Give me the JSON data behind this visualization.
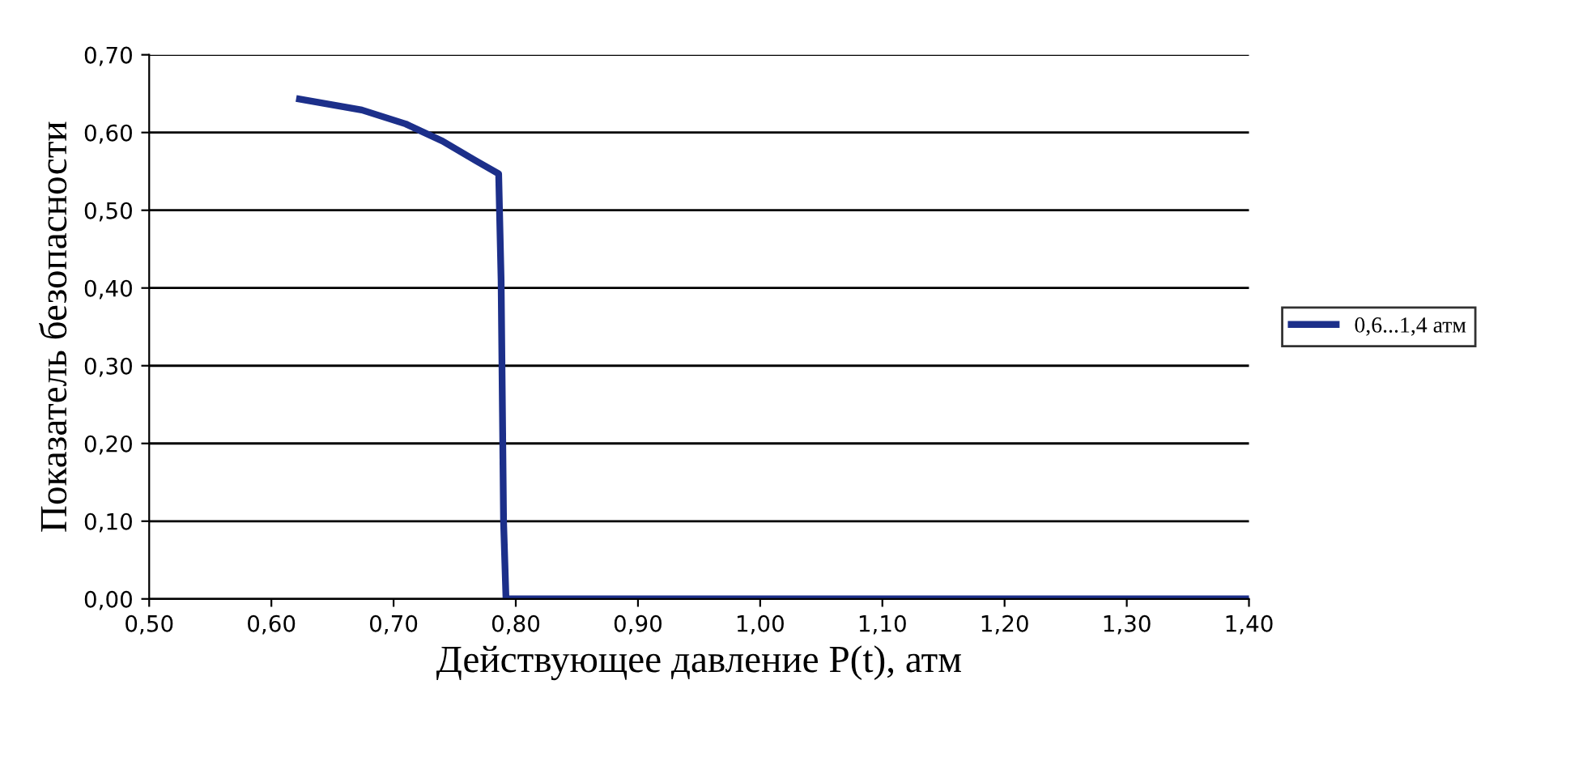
{
  "chart_data": {
    "type": "line",
    "xlabel": "Действующее давление P(t), атм",
    "ylabel": "Показатель безопасности",
    "series": [
      {
        "name": "0,6...1,4 атм",
        "color": "#1c2f8a",
        "x": [
          0.623,
          0.674,
          0.71,
          0.74,
          0.767,
          0.786,
          0.788,
          0.79,
          0.792,
          1.4
        ],
        "values": [
          0.643,
          0.629,
          0.611,
          0.589,
          0.564,
          0.547,
          0.41,
          0.1,
          0.0,
          0.0
        ]
      }
    ],
    "xlim": [
      0.5,
      1.4
    ],
    "ylim": [
      0.0,
      0.7
    ],
    "xticks": [
      {
        "value": 0.5,
        "label": "0,50"
      },
      {
        "value": 0.6,
        "label": "0,60"
      },
      {
        "value": 0.7,
        "label": "0,70"
      },
      {
        "value": 0.8,
        "label": "0,80"
      },
      {
        "value": 0.9,
        "label": "0,90"
      },
      {
        "value": 1.0,
        "label": "1,00"
      },
      {
        "value": 1.1,
        "label": "1,10"
      },
      {
        "value": 1.2,
        "label": "1,20"
      },
      {
        "value": 1.3,
        "label": "1,30"
      },
      {
        "value": 1.4,
        "label": "1,40"
      }
    ],
    "yticks": [
      {
        "value": 0.0,
        "label": "0,00"
      },
      {
        "value": 0.1,
        "label": "0,10"
      },
      {
        "value": 0.2,
        "label": "0,20"
      },
      {
        "value": 0.3,
        "label": "0,30"
      },
      {
        "value": 0.4,
        "label": "0,40"
      },
      {
        "value": 0.5,
        "label": "0,50"
      },
      {
        "value": 0.6,
        "label": "0,60"
      },
      {
        "value": 0.7,
        "label": "0,70"
      }
    ],
    "grid": "y",
    "legend": "right",
    "line_style": "solid",
    "marker": "none"
  }
}
